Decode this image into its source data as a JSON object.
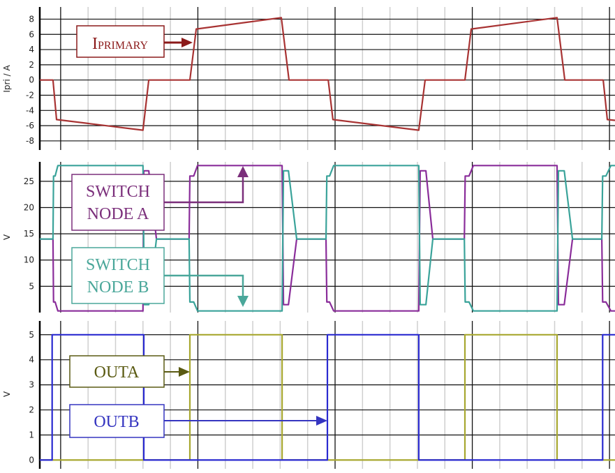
{
  "chart_data": [
    {
      "type": "line",
      "ylabel": "Ipri / A",
      "ylim": [
        -9.2,
        9.6
      ],
      "yticks": [
        8,
        6,
        4,
        2,
        0,
        -2,
        -4,
        -6,
        -8
      ],
      "xlim": [
        -0.76,
        20.2
      ],
      "grid": true,
      "annotation": {
        "main": "I",
        "sub": "PRIMARY",
        "color": "#8b1a1a"
      },
      "series": [
        {
          "color": "#a83333",
          "points": [
            [
              -0.76,
              0
            ],
            [
              -0.28,
              0
            ],
            [
              -0.15,
              -5.2
            ],
            [
              3.0,
              -6.6
            ],
            [
              3.21,
              0
            ],
            [
              4.71,
              0
            ],
            [
              4.94,
              6.7
            ],
            [
              8.04,
              8.2
            ],
            [
              8.32,
              0
            ],
            [
              9.75,
              0
            ],
            [
              9.92,
              -5.2
            ],
            [
              13.05,
              -6.6
            ],
            [
              13.28,
              0
            ],
            [
              14.73,
              0
            ],
            [
              14.96,
              6.7
            ],
            [
              18.09,
              8.2
            ],
            [
              18.37,
              0
            ],
            [
              19.77,
              0
            ],
            [
              19.92,
              -5.2
            ],
            [
              20.2,
              -5.3
            ]
          ]
        }
      ]
    },
    {
      "type": "line",
      "ylabel": "V",
      "ylim": [
        0,
        28.7
      ],
      "yticks": [
        25,
        20,
        15,
        10,
        5
      ],
      "xlim": [
        -0.76,
        20.2
      ],
      "grid": true,
      "series": [
        {
          "name": "SWITCH NODE A",
          "color": "#8a2d9a",
          "points": [
            [
              -0.76,
              14
            ],
            [
              -0.28,
              14
            ],
            [
              -0.26,
              2
            ],
            [
              -0.2,
              2
            ],
            [
              -0.1,
              0.3
            ],
            [
              3.0,
              0.3
            ],
            [
              3.03,
              27
            ],
            [
              3.21,
              27
            ],
            [
              3.49,
              14
            ],
            [
              4.68,
              14
            ],
            [
              4.71,
              26
            ],
            [
              4.85,
              26
            ],
            [
              4.99,
              28
            ],
            [
              8.07,
              28
            ],
            [
              8.12,
              1.5
            ],
            [
              8.3,
              1.5
            ],
            [
              8.6,
              14
            ],
            [
              9.67,
              14
            ],
            [
              9.7,
              2
            ],
            [
              9.8,
              2
            ],
            [
              9.95,
              0.3
            ],
            [
              13.05,
              0.3
            ],
            [
              13.1,
              27
            ],
            [
              13.31,
              27
            ],
            [
              13.56,
              14
            ],
            [
              14.71,
              14
            ],
            [
              14.74,
              26
            ],
            [
              14.88,
              26
            ],
            [
              15.04,
              28
            ],
            [
              18.09,
              28
            ],
            [
              18.14,
              1.5
            ],
            [
              18.35,
              1.5
            ],
            [
              18.65,
              14
            ],
            [
              19.72,
              14
            ],
            [
              19.75,
              2
            ],
            [
              19.87,
              2
            ],
            [
              20.05,
              0.3
            ],
            [
              20.2,
              0.3
            ]
          ]
        },
        {
          "name": "SWITCH NODE B",
          "color": "#3aa39a",
          "points": [
            [
              -0.76,
              14
            ],
            [
              -0.28,
              14
            ],
            [
              -0.26,
              26
            ],
            [
              -0.2,
              26
            ],
            [
              -0.1,
              28
            ],
            [
              3.0,
              28
            ],
            [
              3.05,
              1.5
            ],
            [
              3.21,
              1.5
            ],
            [
              3.49,
              14
            ],
            [
              4.68,
              14
            ],
            [
              4.71,
              2
            ],
            [
              4.85,
              2
            ],
            [
              4.99,
              0.3
            ],
            [
              8.07,
              0.3
            ],
            [
              8.12,
              27
            ],
            [
              8.3,
              27
            ],
            [
              8.6,
              14
            ],
            [
              9.67,
              14
            ],
            [
              9.7,
              26
            ],
            [
              9.8,
              26
            ],
            [
              9.95,
              28
            ],
            [
              13.05,
              28
            ],
            [
              13.1,
              1.5
            ],
            [
              13.31,
              1.5
            ],
            [
              13.56,
              14
            ],
            [
              14.71,
              14
            ],
            [
              14.74,
              2
            ],
            [
              14.88,
              2
            ],
            [
              15.04,
              0.3
            ],
            [
              18.09,
              0.3
            ],
            [
              18.14,
              27
            ],
            [
              18.35,
              27
            ],
            [
              18.65,
              14
            ],
            [
              19.72,
              14
            ],
            [
              19.75,
              26
            ],
            [
              19.87,
              26
            ],
            [
              20.05,
              28
            ],
            [
              20.2,
              28
            ]
          ]
        }
      ],
      "annotations": [
        {
          "line1": "SWITCH",
          "line2": "NODE A",
          "color": "#7b2f7b"
        },
        {
          "line1": "SWITCH",
          "line2": "NODE B",
          "color": "#4aa79a"
        }
      ]
    },
    {
      "type": "line",
      "ylabel": "V",
      "ylim": [
        -0.35,
        5.55
      ],
      "yticks": [
        5,
        4,
        3,
        2,
        1,
        0
      ],
      "xlim": [
        -0.76,
        20.2
      ],
      "grid": true,
      "series": [
        {
          "name": "OUTA",
          "color": "#a8a830",
          "points": [
            [
              -0.76,
              0
            ],
            [
              4.71,
              0
            ],
            [
              4.71,
              5
            ],
            [
              8.07,
              5
            ],
            [
              8.07,
              0
            ],
            [
              14.73,
              0
            ],
            [
              14.73,
              5
            ],
            [
              18.09,
              5
            ],
            [
              18.09,
              0
            ],
            [
              20.2,
              0
            ]
          ]
        },
        {
          "name": "OUTB",
          "color": "#2a2ad0",
          "points": [
            [
              -0.76,
              0
            ],
            [
              -0.31,
              0
            ],
            [
              -0.31,
              5
            ],
            [
              3.03,
              5
            ],
            [
              3.03,
              0
            ],
            [
              9.72,
              0
            ],
            [
              9.72,
              5
            ],
            [
              13.05,
              5
            ],
            [
              13.05,
              0
            ],
            [
              19.75,
              0
            ],
            [
              19.75,
              5
            ],
            [
              20.2,
              5
            ]
          ]
        }
      ],
      "annotations": [
        {
          "label": "OUTA",
          "color": "#5a5a12"
        },
        {
          "label": "OUTB",
          "color": "#3535c0"
        }
      ]
    }
  ]
}
